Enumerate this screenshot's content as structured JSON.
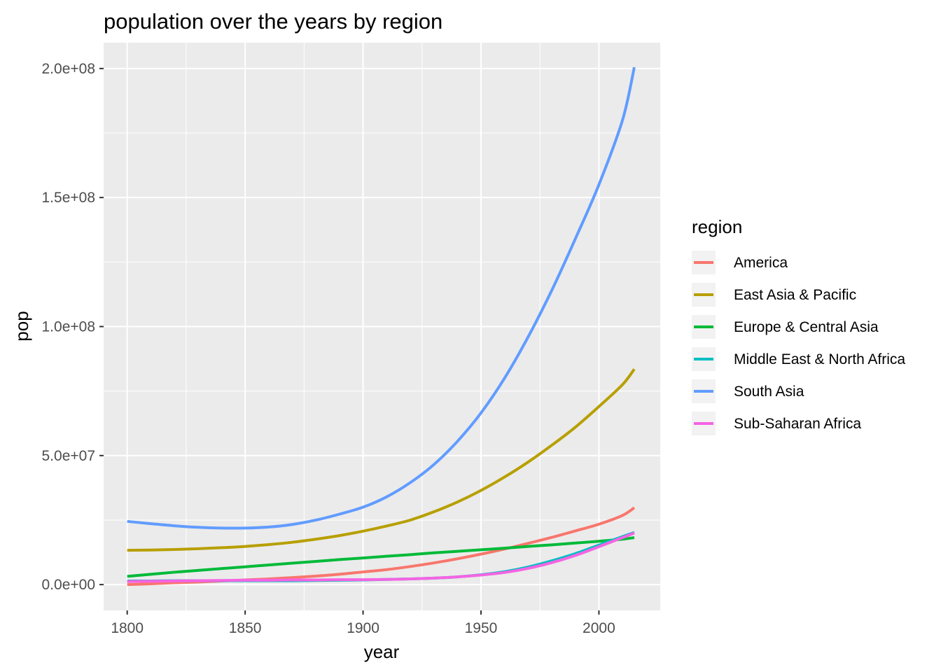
{
  "chart_data": {
    "type": "line",
    "title": "population over the years by region",
    "xlabel": "year",
    "ylabel": "pop",
    "xlim": [
      1790,
      2026
    ],
    "ylim": [
      -10000000,
      210000000
    ],
    "x_ticks": [
      1800,
      1850,
      1900,
      1950,
      2000
    ],
    "y_ticks": [
      0,
      50000000,
      100000000,
      150000000,
      200000000
    ],
    "x_tick_labels": [
      "1800",
      "1850",
      "1900",
      "1950",
      "2000"
    ],
    "y_tick_labels": [
      "0.0e+00",
      "5.0e+07",
      "1.0e+08",
      "1.5e+08",
      "2.0e+08"
    ],
    "grid": true,
    "legend": {
      "title": "region",
      "position": "right"
    },
    "x": [
      1800,
      1810,
      1820,
      1830,
      1840,
      1850,
      1860,
      1870,
      1880,
      1890,
      1900,
      1910,
      1920,
      1930,
      1940,
      1950,
      1960,
      1970,
      1980,
      1990,
      2000,
      2010,
      2015
    ],
    "series": [
      {
        "name": "America",
        "color": "#F8766D",
        "values": [
          0,
          300000,
          700000,
          1000000,
          1400000,
          1800000,
          2200000,
          2700000,
          3300000,
          4000000,
          4900000,
          5800000,
          7000000,
          8400000,
          10000000,
          11800000,
          13800000,
          16000000,
          18300000,
          20800000,
          23400000,
          26800000,
          29800000
        ]
      },
      {
        "name": "East Asia & Pacific",
        "color": "#B79F00",
        "values": [
          13300000,
          13400000,
          13600000,
          13900000,
          14300000,
          14800000,
          15500000,
          16400000,
          17600000,
          19000000,
          20700000,
          22700000,
          25000000,
          28200000,
          32000000,
          36500000,
          41700000,
          47500000,
          54000000,
          61000000,
          69000000,
          77500000,
          83500000
        ]
      },
      {
        "name": "Europe & Central Asia",
        "color": "#00BA38",
        "values": [
          3200000,
          4000000,
          4800000,
          5500000,
          6200000,
          6900000,
          7600000,
          8300000,
          9000000,
          9700000,
          10300000,
          11000000,
          11600000,
          12300000,
          12900000,
          13500000,
          14100000,
          14800000,
          15400000,
          16100000,
          16800000,
          17600000,
          18200000
        ]
      },
      {
        "name": "Middle East & North Africa",
        "color": "#00BFC4",
        "values": [
          1400000,
          1400000,
          1500000,
          1500000,
          1500000,
          1500000,
          1500000,
          1500000,
          1600000,
          1700000,
          1800000,
          2000000,
          2200000,
          2500000,
          3000000,
          3800000,
          5000000,
          6800000,
          9200000,
          12000000,
          15300000,
          18600000,
          20200000
        ]
      },
      {
        "name": "South Asia",
        "color": "#619CFF",
        "values": [
          24500000,
          23600000,
          22800000,
          22200000,
          21900000,
          21900000,
          22300000,
          23300000,
          25000000,
          27300000,
          30000000,
          34000000,
          39500000,
          46500000,
          55500000,
          66500000,
          80000000,
          96000000,
          114000000,
          134000000,
          155000000,
          180000000,
          200500000
        ]
      },
      {
        "name": "Sub-Saharan Africa",
        "color": "#F564E3",
        "values": [
          1200000,
          1300000,
          1400000,
          1500000,
          1600000,
          1700000,
          1700000,
          1800000,
          1800000,
          1900000,
          1900000,
          2000000,
          2200000,
          2500000,
          3000000,
          3700000,
          4700000,
          6300000,
          8500000,
          11300000,
          14700000,
          18200000,
          20000000
        ]
      }
    ]
  }
}
